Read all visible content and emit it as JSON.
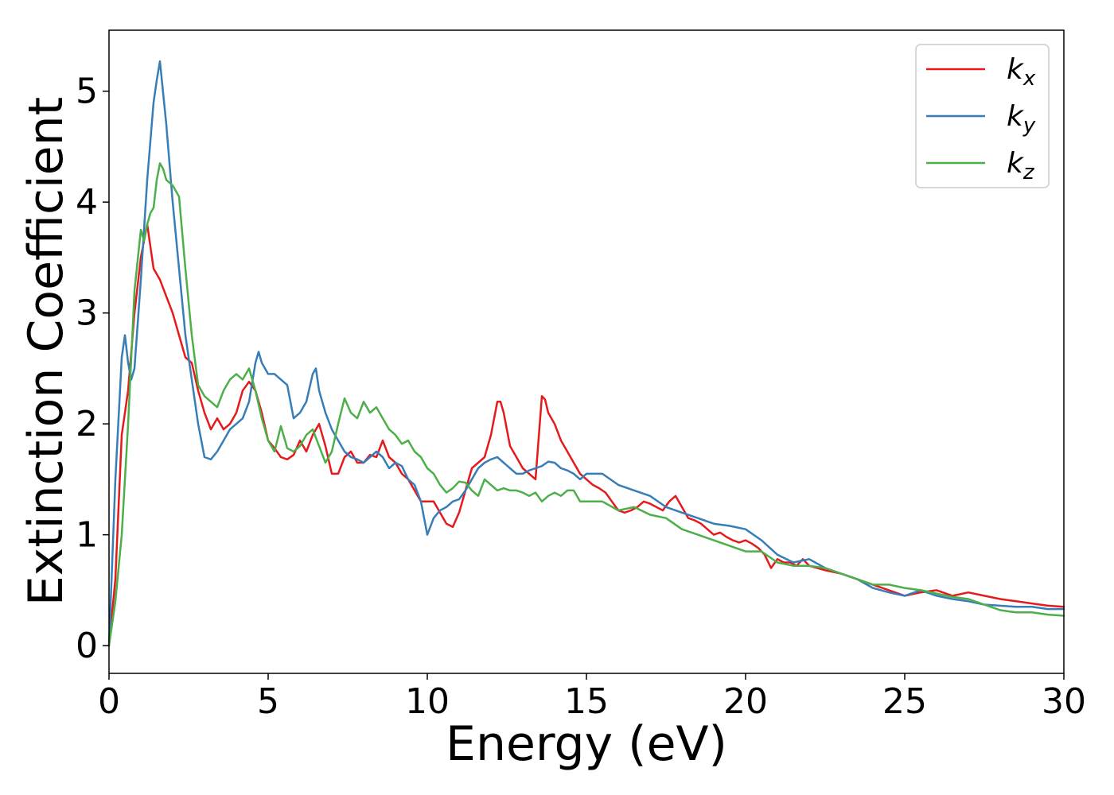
{
  "chart_data": {
    "type": "line",
    "title": "",
    "xlabel": "Energy (eV)",
    "ylabel": "Extinction Coefficient",
    "xlim": [
      0,
      30
    ],
    "ylim": [
      -0.25,
      5.55
    ],
    "xticks": [
      0,
      5,
      10,
      15,
      20,
      25,
      30
    ],
    "yticks": [
      0,
      1,
      2,
      3,
      4,
      5
    ],
    "grid": false,
    "legend_position": "top-right",
    "series": [
      {
        "name": "k",
        "subscript": "x",
        "color": "#e41a1c",
        "x": [
          0,
          0.2,
          0.4,
          0.6,
          0.8,
          1.0,
          1.2,
          1.3,
          1.4,
          1.6,
          1.8,
          2.0,
          2.2,
          2.4,
          2.6,
          2.8,
          3.0,
          3.2,
          3.4,
          3.6,
          3.8,
          4.0,
          4.2,
          4.4,
          4.6,
          4.8,
          5.0,
          5.2,
          5.4,
          5.6,
          5.8,
          6.0,
          6.2,
          6.4,
          6.6,
          6.8,
          7.0,
          7.2,
          7.4,
          7.6,
          7.8,
          8.0,
          8.2,
          8.4,
          8.6,
          8.8,
          9.0,
          9.2,
          9.4,
          9.6,
          9.8,
          10.0,
          10.2,
          10.4,
          10.6,
          10.8,
          11.0,
          11.2,
          11.4,
          11.6,
          11.8,
          12.0,
          12.2,
          12.3,
          12.4,
          12.6,
          12.8,
          13.0,
          13.2,
          13.4,
          13.6,
          13.7,
          13.8,
          14.0,
          14.2,
          14.4,
          14.6,
          14.8,
          15.0,
          15.2,
          15.4,
          15.6,
          15.8,
          16.0,
          16.2,
          16.4,
          16.6,
          16.8,
          17.0,
          17.2,
          17.4,
          17.6,
          17.8,
          18.0,
          18.2,
          18.4,
          18.6,
          18.8,
          19.0,
          19.2,
          19.4,
          19.6,
          19.8,
          20.0,
          20.2,
          20.4,
          20.6,
          20.8,
          21.0,
          21.2,
          21.4,
          21.6,
          21.8,
          22.0,
          22.5,
          23.0,
          23.5,
          24.0,
          24.5,
          25.0,
          25.5,
          26.0,
          26.5,
          27.0,
          27.5,
          28.0,
          28.5,
          29.0,
          29.5,
          30.0
        ],
        "y": [
          0.0,
          0.6,
          1.9,
          2.3,
          3.0,
          3.5,
          3.8,
          3.6,
          3.4,
          3.3,
          3.15,
          3.0,
          2.8,
          2.6,
          2.55,
          2.3,
          2.1,
          1.95,
          2.05,
          1.95,
          2.0,
          2.1,
          2.3,
          2.38,
          2.3,
          2.1,
          1.85,
          1.78,
          1.7,
          1.68,
          1.72,
          1.85,
          1.75,
          1.9,
          2.0,
          1.8,
          1.55,
          1.55,
          1.7,
          1.75,
          1.65,
          1.65,
          1.72,
          1.7,
          1.85,
          1.7,
          1.65,
          1.55,
          1.5,
          1.4,
          1.3,
          1.3,
          1.3,
          1.2,
          1.1,
          1.07,
          1.2,
          1.4,
          1.6,
          1.65,
          1.7,
          1.9,
          2.2,
          2.2,
          2.1,
          1.8,
          1.7,
          1.6,
          1.55,
          1.5,
          2.25,
          2.22,
          2.1,
          2.0,
          1.85,
          1.75,
          1.65,
          1.55,
          1.5,
          1.45,
          1.42,
          1.38,
          1.3,
          1.22,
          1.2,
          1.22,
          1.25,
          1.3,
          1.28,
          1.25,
          1.22,
          1.3,
          1.35,
          1.25,
          1.15,
          1.13,
          1.1,
          1.05,
          1.0,
          1.02,
          0.98,
          0.95,
          0.93,
          0.95,
          0.92,
          0.88,
          0.82,
          0.7,
          0.78,
          0.75,
          0.75,
          0.72,
          0.78,
          0.72,
          0.68,
          0.65,
          0.6,
          0.55,
          0.5,
          0.45,
          0.48,
          0.5,
          0.45,
          0.48,
          0.45,
          0.42,
          0.4,
          0.38,
          0.36,
          0.35
        ]
      },
      {
        "name": "k",
        "subscript": "y",
        "color": "#377eb8",
        "x": [
          0,
          0.2,
          0.4,
          0.5,
          0.6,
          0.7,
          0.8,
          1.0,
          1.2,
          1.4,
          1.5,
          1.6,
          1.8,
          2.0,
          2.2,
          2.4,
          2.6,
          2.8,
          3.0,
          3.2,
          3.4,
          3.6,
          3.8,
          4.0,
          4.2,
          4.4,
          4.6,
          4.7,
          4.8,
          5.0,
          5.2,
          5.4,
          5.6,
          5.8,
          6.0,
          6.2,
          6.4,
          6.5,
          6.6,
          6.8,
          7.0,
          7.2,
          7.4,
          7.6,
          7.8,
          8.0,
          8.2,
          8.4,
          8.6,
          8.8,
          9.0,
          9.2,
          9.4,
          9.6,
          9.8,
          10.0,
          10.2,
          10.4,
          10.6,
          10.8,
          11.0,
          11.2,
          11.4,
          11.6,
          11.8,
          12.0,
          12.2,
          12.4,
          12.6,
          12.8,
          13.0,
          13.2,
          13.4,
          13.6,
          13.8,
          14.0,
          14.2,
          14.4,
          14.6,
          14.8,
          15.0,
          15.5,
          16.0,
          16.5,
          17.0,
          17.5,
          18.0,
          18.5,
          19.0,
          19.5,
          20.0,
          20.5,
          21.0,
          21.5,
          22.0,
          22.5,
          23.0,
          23.5,
          24.0,
          24.5,
          25.0,
          25.5,
          26.0,
          26.5,
          27.0,
          27.5,
          28.0,
          28.5,
          29.0,
          29.5,
          30.0
        ],
        "y": [
          0.0,
          1.5,
          2.6,
          2.8,
          2.55,
          2.4,
          2.5,
          3.3,
          4.2,
          4.9,
          5.1,
          5.27,
          4.7,
          4.0,
          3.4,
          2.8,
          2.4,
          2.0,
          1.7,
          1.68,
          1.75,
          1.85,
          1.95,
          2.0,
          2.05,
          2.2,
          2.55,
          2.65,
          2.55,
          2.45,
          2.45,
          2.4,
          2.35,
          2.05,
          2.1,
          2.2,
          2.45,
          2.5,
          2.3,
          2.1,
          1.95,
          1.85,
          1.75,
          1.7,
          1.68,
          1.65,
          1.7,
          1.75,
          1.7,
          1.6,
          1.65,
          1.62,
          1.5,
          1.45,
          1.3,
          1.0,
          1.15,
          1.22,
          1.25,
          1.3,
          1.32,
          1.4,
          1.5,
          1.6,
          1.65,
          1.68,
          1.7,
          1.65,
          1.6,
          1.55,
          1.55,
          1.58,
          1.6,
          1.62,
          1.66,
          1.65,
          1.6,
          1.58,
          1.55,
          1.5,
          1.55,
          1.55,
          1.45,
          1.4,
          1.35,
          1.25,
          1.2,
          1.15,
          1.1,
          1.08,
          1.05,
          0.95,
          0.82,
          0.75,
          0.78,
          0.7,
          0.65,
          0.6,
          0.52,
          0.48,
          0.45,
          0.5,
          0.45,
          0.42,
          0.4,
          0.37,
          0.36,
          0.35,
          0.35,
          0.33,
          0.33
        ]
      },
      {
        "name": "k",
        "subscript": "z",
        "color": "#4daf4a",
        "x": [
          0,
          0.2,
          0.4,
          0.6,
          0.8,
          1.0,
          1.1,
          1.2,
          1.3,
          1.4,
          1.5,
          1.6,
          1.7,
          1.8,
          2.0,
          2.2,
          2.4,
          2.6,
          2.8,
          3.0,
          3.2,
          3.4,
          3.6,
          3.8,
          4.0,
          4.2,
          4.4,
          4.6,
          4.8,
          5.0,
          5.2,
          5.4,
          5.6,
          5.8,
          6.0,
          6.2,
          6.4,
          6.6,
          6.8,
          7.0,
          7.2,
          7.4,
          7.6,
          7.8,
          8.0,
          8.2,
          8.4,
          8.6,
          8.8,
          9.0,
          9.2,
          9.4,
          9.6,
          9.8,
          10.0,
          10.2,
          10.4,
          10.6,
          10.8,
          11.0,
          11.2,
          11.4,
          11.6,
          11.8,
          12.0,
          12.2,
          12.4,
          12.6,
          12.8,
          13.0,
          13.2,
          13.4,
          13.6,
          13.8,
          14.0,
          14.2,
          14.4,
          14.6,
          14.8,
          15.0,
          15.5,
          16.0,
          16.5,
          17.0,
          17.5,
          18.0,
          18.5,
          19.0,
          19.5,
          20.0,
          20.5,
          21.0,
          21.5,
          22.0,
          22.5,
          23.0,
          23.5,
          24.0,
          24.5,
          25.0,
          25.5,
          26.0,
          26.5,
          27.0,
          27.5,
          28.0,
          28.5,
          29.0,
          29.5,
          30.0
        ],
        "y": [
          0.0,
          0.4,
          1.0,
          2.0,
          3.2,
          3.75,
          3.65,
          3.8,
          3.9,
          3.95,
          4.2,
          4.35,
          4.3,
          4.2,
          4.15,
          4.05,
          3.4,
          2.8,
          2.35,
          2.25,
          2.2,
          2.15,
          2.3,
          2.4,
          2.45,
          2.4,
          2.5,
          2.3,
          2.05,
          1.85,
          1.75,
          1.98,
          1.78,
          1.75,
          1.8,
          1.9,
          1.95,
          1.8,
          1.65,
          1.75,
          2.0,
          2.23,
          2.1,
          2.05,
          2.2,
          2.1,
          2.15,
          2.05,
          1.95,
          1.9,
          1.82,
          1.85,
          1.75,
          1.7,
          1.6,
          1.55,
          1.45,
          1.38,
          1.42,
          1.48,
          1.47,
          1.4,
          1.35,
          1.5,
          1.45,
          1.4,
          1.42,
          1.4,
          1.4,
          1.38,
          1.35,
          1.38,
          1.3,
          1.35,
          1.38,
          1.35,
          1.4,
          1.4,
          1.3,
          1.3,
          1.3,
          1.22,
          1.25,
          1.18,
          1.15,
          1.05,
          1.0,
          0.95,
          0.9,
          0.85,
          0.85,
          0.75,
          0.72,
          0.72,
          0.7,
          0.65,
          0.6,
          0.55,
          0.55,
          0.52,
          0.5,
          0.47,
          0.44,
          0.42,
          0.37,
          0.32,
          0.3,
          0.3,
          0.28,
          0.27
        ]
      }
    ]
  }
}
